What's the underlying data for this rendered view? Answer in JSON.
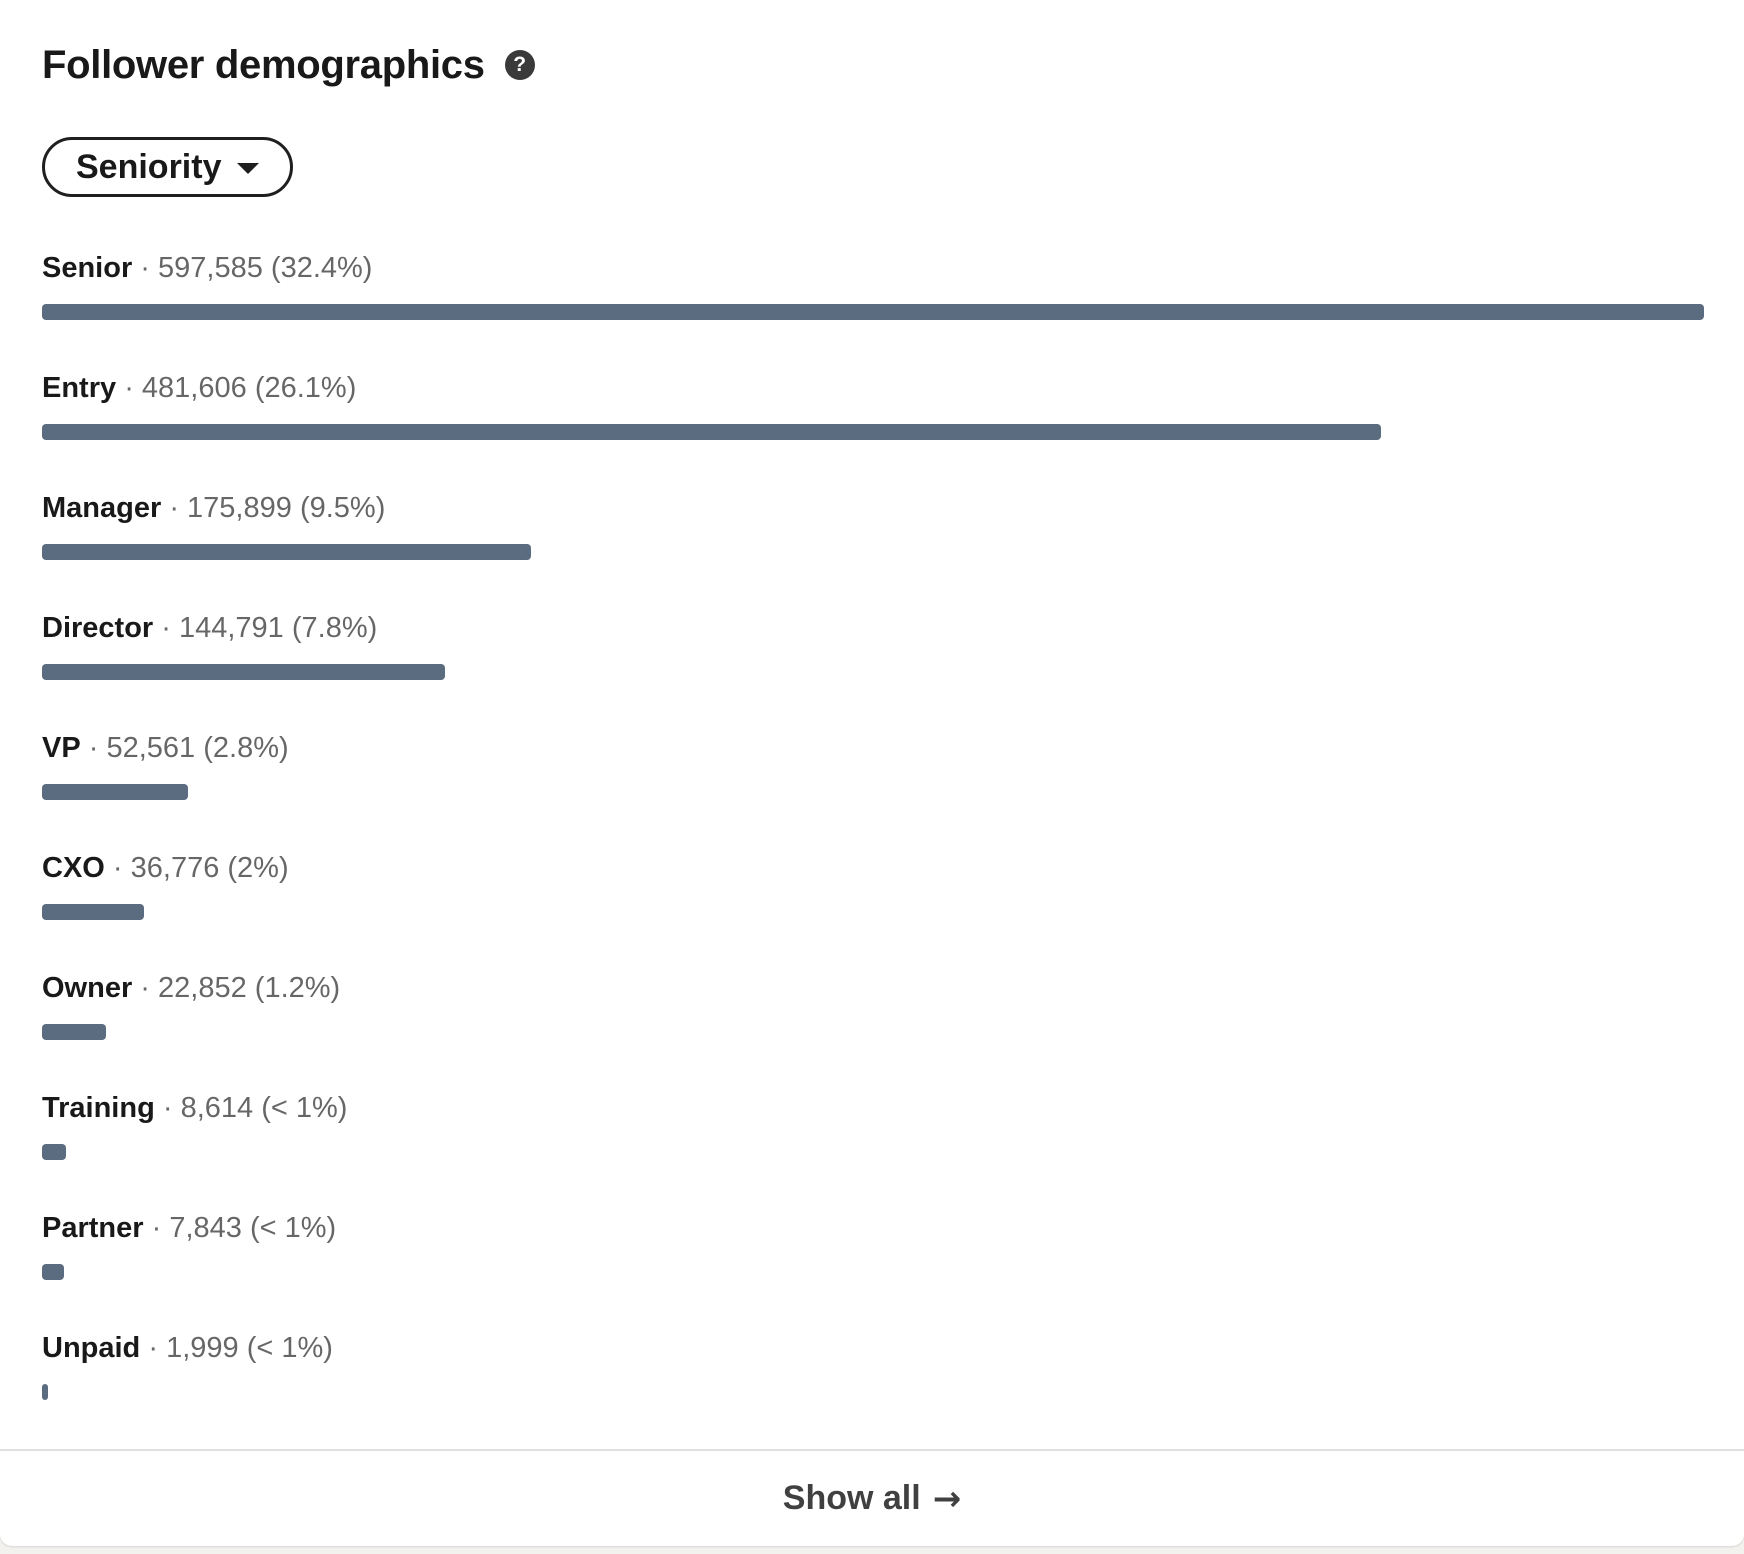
{
  "header": {
    "title": "Follower demographics",
    "help_icon": "question-circle-icon"
  },
  "filter": {
    "selected": "Seniority",
    "caret_icon": "caret-down-icon"
  },
  "chart_data": {
    "type": "bar",
    "orientation": "horizontal",
    "categories": [
      "Senior",
      "Entry",
      "Manager",
      "Director",
      "VP",
      "CXO",
      "Owner",
      "Training",
      "Partner",
      "Unpaid"
    ],
    "values": [
      597585,
      481606,
      175899,
      144791,
      52561,
      36776,
      22852,
      8614,
      7843,
      1999
    ],
    "value_labels": [
      "597,585",
      "481,606",
      "175,899",
      "144,791",
      "52,561",
      "36,776",
      "22,852",
      "8,614",
      "7,843",
      "1,999"
    ],
    "percent_labels": [
      "(32.4%)",
      "(26.1%)",
      "(9.5%)",
      "(7.8%)",
      "(2.8%)",
      "(2%)",
      "(1.2%)",
      "(< 1%)",
      "(< 1%)",
      "(< 1%)"
    ],
    "bar_color": "#5b6b80"
  },
  "footer": {
    "show_all_label": "Show all",
    "arrow_icon": "arrow-right-icon",
    "arrow_glyph": "→"
  }
}
